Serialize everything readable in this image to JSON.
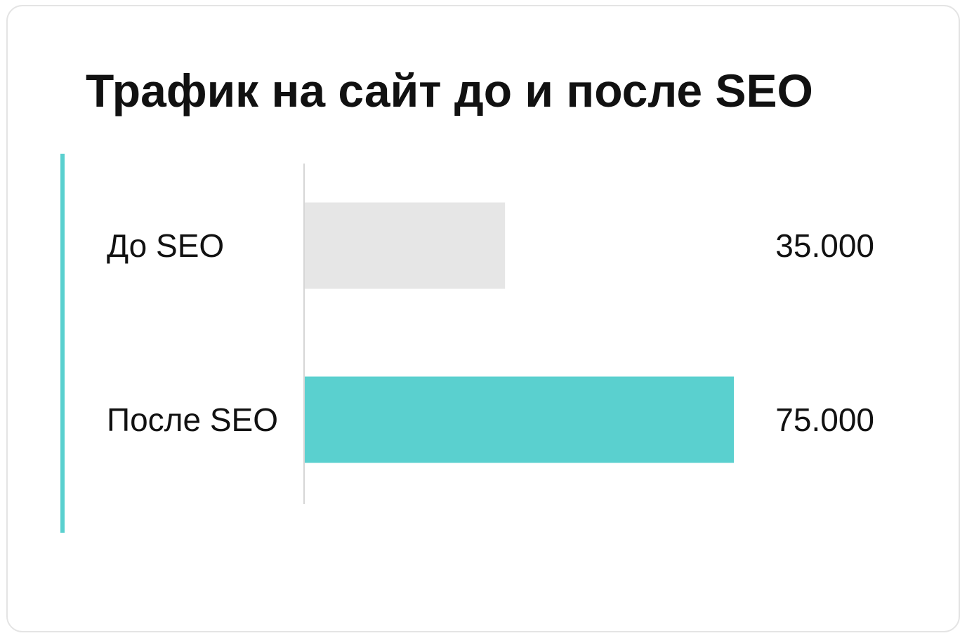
{
  "chart_data": {
    "type": "hbar",
    "title": "Трафик на сайт до и после SEO",
    "categories": [
      "До SEO",
      "После SEO"
    ],
    "values": [
      35000,
      75000
    ],
    "value_labels": [
      "35.000",
      "75.000"
    ],
    "colors": [
      "#e6e6e6",
      "#5ad0cf"
    ]
  }
}
